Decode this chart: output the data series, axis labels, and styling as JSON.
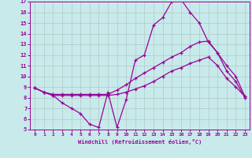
{
  "xlabel": "Windchill (Refroidissement éolien,°C)",
  "bg_color": "#c8eaea",
  "line_color": "#990099",
  "grid_color": "#b0c8c8",
  "xlim": [
    -0.5,
    23.5
  ],
  "ylim": [
    5,
    17
  ],
  "xticks": [
    0,
    1,
    2,
    3,
    4,
    5,
    6,
    7,
    8,
    9,
    10,
    11,
    12,
    13,
    14,
    15,
    16,
    17,
    18,
    19,
    20,
    21,
    22,
    23
  ],
  "yticks": [
    5,
    6,
    7,
    8,
    9,
    10,
    11,
    12,
    13,
    14,
    15,
    16,
    17
  ],
  "curve1_x": [
    0,
    1,
    2,
    3,
    4,
    5,
    6,
    7,
    8,
    9,
    10,
    11,
    12,
    13,
    14,
    15,
    16,
    17,
    18,
    19,
    20,
    21,
    22,
    23
  ],
  "curve1_y": [
    8.9,
    8.5,
    8.2,
    7.5,
    7.0,
    6.5,
    5.5,
    5.2,
    8.5,
    5.2,
    7.8,
    11.5,
    12.0,
    14.8,
    15.5,
    17.0,
    17.2,
    16.0,
    15.0,
    13.2,
    12.2,
    10.5,
    9.5,
    8.0
  ],
  "curve2_x": [
    0,
    1,
    2,
    3,
    4,
    5,
    6,
    7,
    8,
    9,
    10,
    11,
    12,
    13,
    14,
    15,
    16,
    17,
    18,
    19,
    20,
    21,
    22,
    23
  ],
  "curve2_y": [
    8.9,
    8.5,
    8.3,
    8.3,
    8.3,
    8.3,
    8.3,
    8.3,
    8.3,
    8.7,
    9.2,
    9.8,
    10.3,
    10.8,
    11.3,
    11.8,
    12.2,
    12.8,
    13.2,
    13.3,
    12.2,
    11.0,
    10.0,
    8.1
  ],
  "curve3_x": [
    0,
    1,
    2,
    3,
    4,
    5,
    6,
    7,
    8,
    9,
    10,
    11,
    12,
    13,
    14,
    15,
    16,
    17,
    18,
    19,
    20,
    21,
    22,
    23
  ],
  "curve3_y": [
    8.9,
    8.5,
    8.2,
    8.2,
    8.2,
    8.2,
    8.2,
    8.2,
    8.2,
    8.3,
    8.5,
    8.8,
    9.1,
    9.5,
    10.0,
    10.5,
    10.8,
    11.2,
    11.5,
    11.8,
    11.0,
    9.8,
    9.0,
    8.1
  ]
}
